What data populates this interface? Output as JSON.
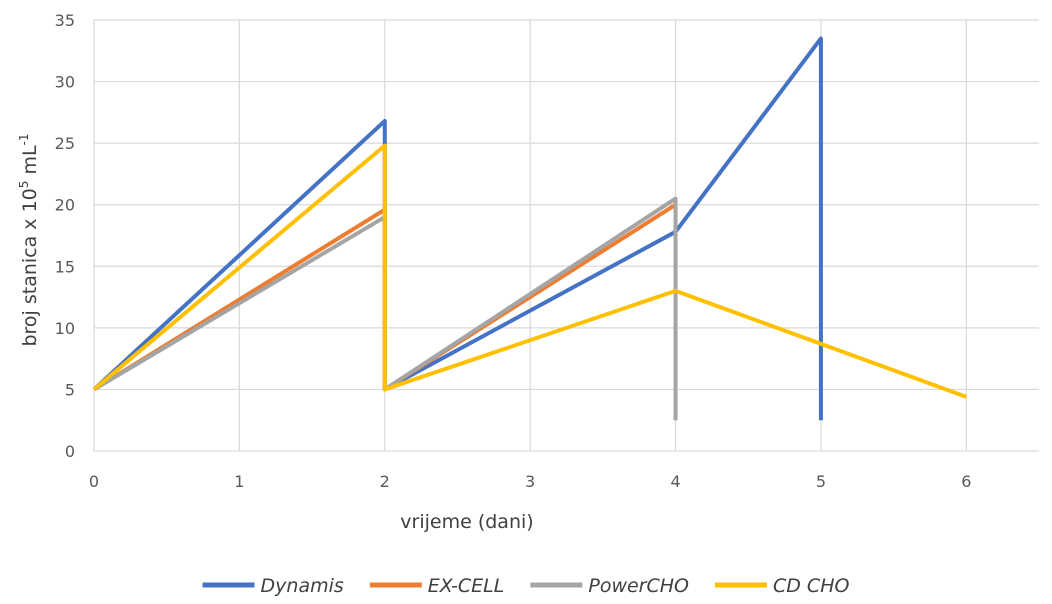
{
  "chart_data": {
    "type": "line",
    "xlabel": "vrijeme (dani)",
    "ylabel": {
      "main": "broj stanica x 10",
      "exp1": "5",
      "unit": " mL",
      "exp2": "-1"
    },
    "xlim": [
      0,
      6.5
    ],
    "ylim": [
      0,
      35
    ],
    "xticks": [
      0,
      1,
      2,
      3,
      4,
      5,
      6
    ],
    "yticks": [
      0,
      5,
      10,
      15,
      20,
      25,
      30,
      35
    ],
    "grid": true,
    "legend_position": "bottom",
    "series": [
      {
        "name": "Dynamis",
        "color": "#4472C4",
        "points": [
          [
            0,
            5
          ],
          [
            2,
            26.8
          ],
          [
            2,
            5
          ],
          [
            4,
            17.8
          ],
          [
            5,
            33.5
          ],
          [
            5,
            2.5
          ]
        ]
      },
      {
        "name": "EX-CELL",
        "color": "#ED7D31",
        "points": [
          [
            0,
            5
          ],
          [
            2,
            19.6
          ],
          [
            2,
            5
          ],
          [
            4,
            20
          ]
        ]
      },
      {
        "name": "PowerCHO",
        "color": "#A5A5A5",
        "points": [
          [
            0,
            5
          ],
          [
            2,
            19
          ],
          [
            2,
            5
          ],
          [
            4,
            20.5
          ],
          [
            4,
            2.5
          ]
        ]
      },
      {
        "name": "CD CHO",
        "color": "#FFC000",
        "points": [
          [
            0,
            5
          ],
          [
            2,
            24.8
          ],
          [
            2,
            5
          ],
          [
            4,
            13
          ],
          [
            6,
            4.4
          ]
        ]
      }
    ]
  }
}
